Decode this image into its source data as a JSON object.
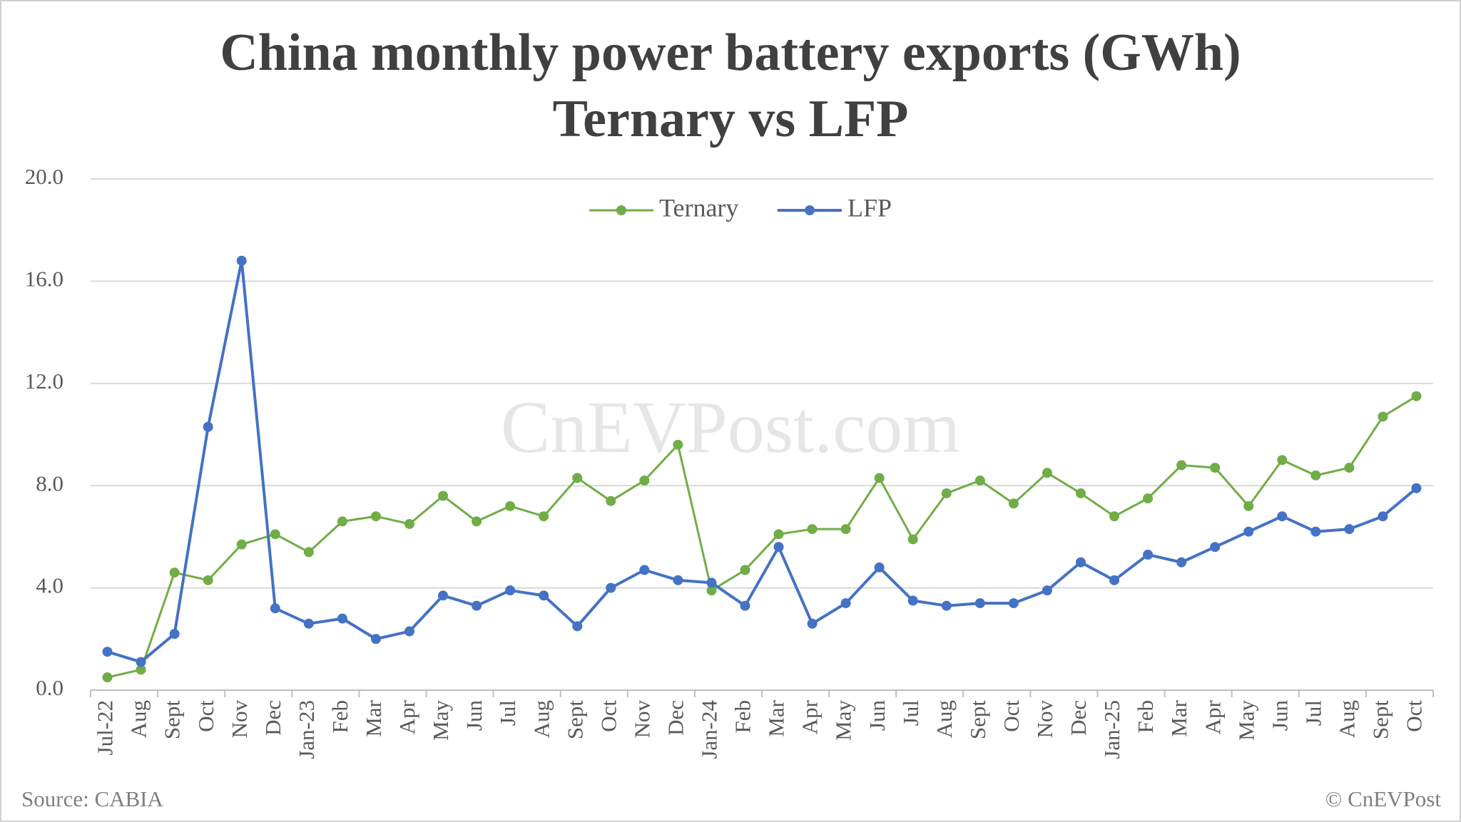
{
  "chart_data": {
    "type": "line",
    "title": "China monthly power battery exports (GWh)",
    "subtitle": "Ternary vs LFP",
    "watermark": "CnEVPost.com",
    "source": "Source: CABIA",
    "credit": "© CnEVPost",
    "categories": [
      "Jul-22",
      "Aug",
      "Sept",
      "Oct",
      "Nov",
      "Dec",
      "Jan-23",
      "Feb",
      "Mar",
      "Apr",
      "May",
      "Jun",
      "Jul",
      "Aug",
      "Sept",
      "Oct",
      "Nov",
      "Dec",
      "Jan-24",
      "Feb",
      "Mar",
      "Apr",
      "May",
      "Jun",
      "Jul",
      "Aug",
      "Sept",
      "Oct",
      "Nov",
      "Dec",
      "Jan-25",
      "Feb",
      "Mar",
      "Apr",
      "May",
      "Jun",
      "Jul",
      "Aug",
      "Sept",
      "Oct"
    ],
    "series": [
      {
        "name": "Ternary",
        "color": "#70ad47",
        "values": [
          0.5,
          0.8,
          4.6,
          4.3,
          5.7,
          6.1,
          5.4,
          6.6,
          6.8,
          6.5,
          7.6,
          6.6,
          7.2,
          6.8,
          8.3,
          7.4,
          8.2,
          9.6,
          3.9,
          4.7,
          6.1,
          6.3,
          6.3,
          8.3,
          5.9,
          7.7,
          8.2,
          7.3,
          8.5,
          7.7,
          6.8,
          7.5,
          8.8,
          8.7,
          7.2,
          9.0,
          8.4,
          8.7,
          10.7,
          11.5
        ]
      },
      {
        "name": "LFP",
        "color": "#4472c4",
        "values": [
          1.5,
          1.1,
          2.2,
          10.3,
          16.8,
          3.2,
          2.6,
          2.8,
          2.0,
          2.3,
          3.7,
          3.3,
          3.9,
          3.7,
          2.5,
          4.0,
          4.7,
          4.3,
          4.2,
          3.3,
          5.6,
          2.6,
          3.4,
          4.8,
          3.5,
          3.3,
          3.4,
          3.4,
          3.9,
          5.0,
          4.3,
          5.3,
          5.0,
          5.6,
          6.2,
          6.8,
          6.2,
          6.3,
          6.8,
          7.9
        ]
      }
    ],
    "ylim": [
      0,
      20
    ],
    "yticks": [
      {
        "value": 0,
        "label": "0.0"
      },
      {
        "value": 4,
        "label": "4.0"
      },
      {
        "value": 8,
        "label": "8.0"
      },
      {
        "value": 12,
        "label": "12.0"
      },
      {
        "value": 16,
        "label": "16.0"
      },
      {
        "value": 20,
        "label": "20.0"
      }
    ],
    "grid": true,
    "legend": "top"
  }
}
